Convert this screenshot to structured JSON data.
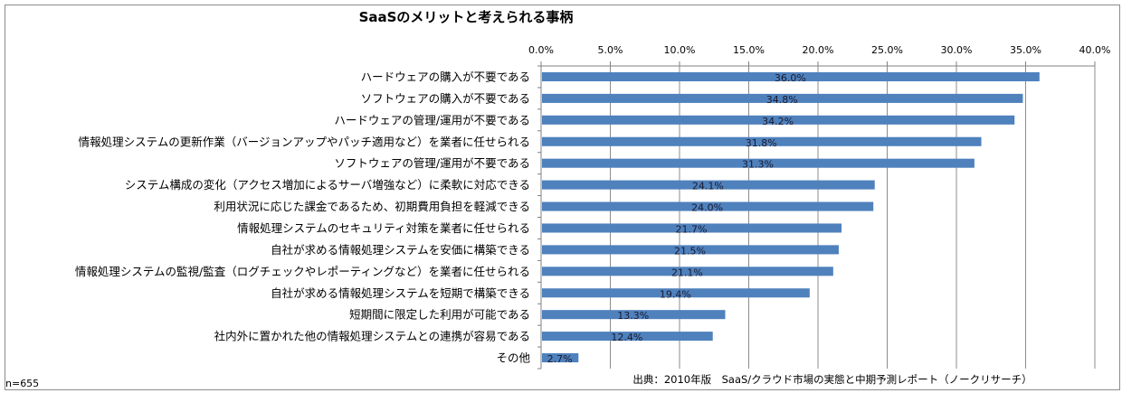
{
  "chart_data": {
    "type": "bar",
    "orientation": "horizontal",
    "title": "SaaSのメリットと考えられる事柄",
    "xlabel": "",
    "ylabel": "",
    "xlim": [
      0,
      40
    ],
    "x_ticks": [
      "0.0%",
      "5.0%",
      "10.0%",
      "15.0%",
      "20.0%",
      "25.0%",
      "30.0%",
      "35.0%",
      "40.0%"
    ],
    "x_tick_values": [
      0,
      5,
      10,
      15,
      20,
      25,
      30,
      35,
      40
    ],
    "x_axis_position": "top",
    "grid": true,
    "bar_color": "#4f81bd",
    "categories": [
      "ハードウェアの購入が不要である",
      "ソフトウェアの購入が不要である",
      "ハードウェアの管理/運用が不要である",
      "情報処理システムの更新作業（バージョンアップやパッチ適用など）を業者に任せられる",
      "ソフトウェアの管理/運用が不要である",
      "システム構成の変化（アクセス増加によるサーバ増強など）に柔軟に対応できる",
      "利用状況に応じた課金であるため、初期費用負担を軽減できる",
      "情報処理システムのセキュリティ対策を業者に任せられる",
      "自社が求める情報処理システムを安価に構築できる",
      "情報処理システムの監視/監査（ログチェックやレポーティングなど）を業者に任せられる",
      "自社が求める情報処理システムを短期で構築できる",
      "短期間に限定した利用が可能である",
      "社内外に置かれた他の情報処理システムとの連携が容易である",
      "その他"
    ],
    "values": [
      36.0,
      34.8,
      34.2,
      31.8,
      31.3,
      24.1,
      24.0,
      21.7,
      21.5,
      21.1,
      19.4,
      13.3,
      12.4,
      2.7
    ],
    "data_labels": [
      "36.0%",
      "34.8%",
      "34.2%",
      "31.8%",
      "31.3%",
      "24.1%",
      "24.0%",
      "21.7%",
      "21.5%",
      "21.1%",
      "19.4%",
      "13.3%",
      "12.4%",
      "2.7%"
    ],
    "annotations": {
      "sample_size": "n=655",
      "source": "出典：2010年版　SaaS/クラウド市場の実態と中期予測レポート（ノークリサーチ）"
    }
  }
}
